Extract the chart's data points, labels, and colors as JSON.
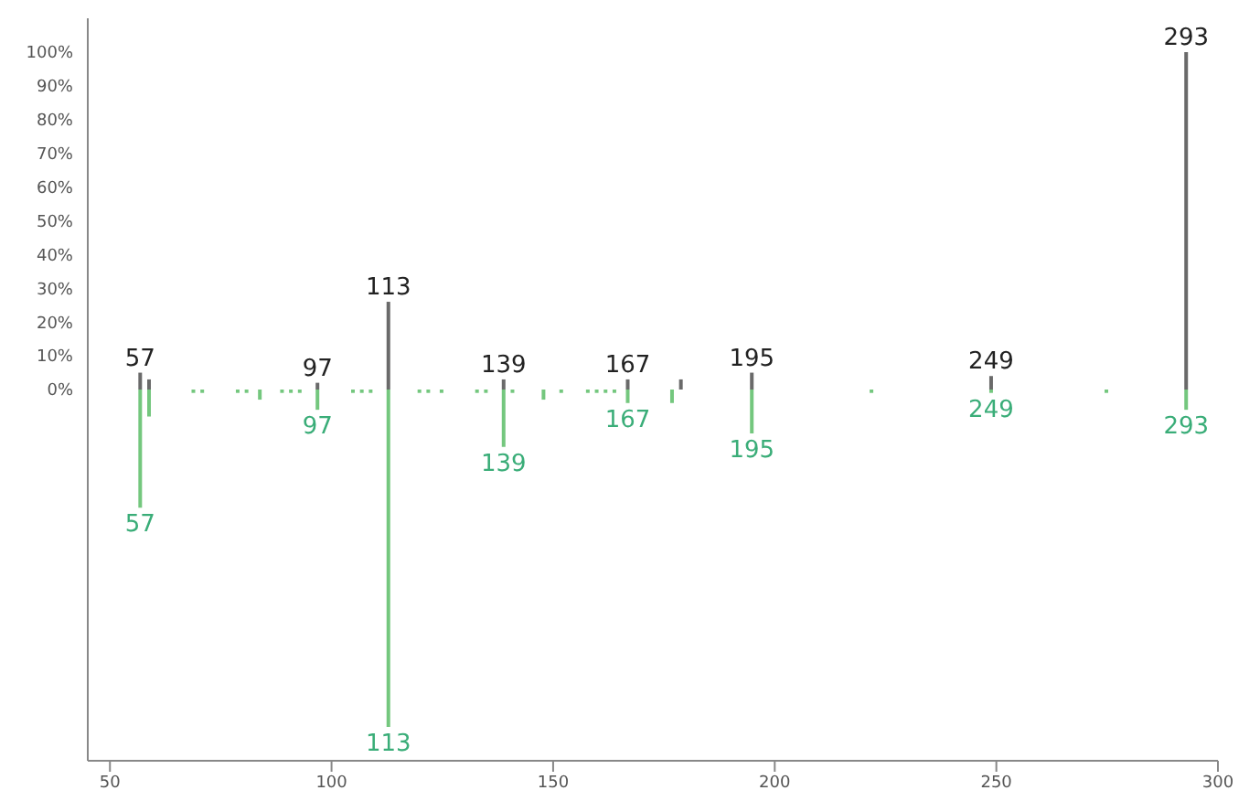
{
  "chart_data": {
    "type": "bar",
    "xlim": [
      45,
      300
    ],
    "xticks": [
      50,
      100,
      150,
      200,
      250,
      300
    ],
    "ylim": [
      -110,
      110
    ],
    "yticks": [
      {
        "value": 0,
        "label": "0%"
      },
      {
        "value": 10,
        "label": "10%"
      },
      {
        "value": 20,
        "label": "20%"
      },
      {
        "value": 30,
        "label": "30%"
      },
      {
        "value": 40,
        "label": "40%"
      },
      {
        "value": 50,
        "label": "50%"
      },
      {
        "value": 60,
        "label": "60%"
      },
      {
        "value": 70,
        "label": "70%"
      },
      {
        "value": 80,
        "label": "80%"
      },
      {
        "value": 90,
        "label": "90%"
      },
      {
        "value": 100,
        "label": "100%"
      }
    ],
    "grid": false,
    "legend": false,
    "series": [
      {
        "color": "#6a6a6a",
        "x": [
          57,
          59,
          97,
          113,
          139,
          167,
          179,
          195,
          249,
          293
        ],
        "values": [
          5,
          3,
          2,
          26,
          3,
          3,
          3,
          5,
          4,
          100
        ]
      },
      {
        "color": "#74c77e",
        "x": [
          57,
          59,
          69,
          71,
          79,
          81,
          84,
          89,
          91,
          93,
          97,
          105,
          107,
          109,
          113,
          120,
          122,
          125,
          133,
          135,
          139,
          141,
          148,
          152,
          158,
          160,
          162,
          164,
          167,
          177,
          195,
          222,
          249,
          275,
          293
        ],
        "values": [
          -35,
          -8,
          -1,
          -1,
          -1,
          -1,
          -3,
          -1,
          -1,
          -1,
          -6,
          -1,
          -1,
          -1,
          -100,
          -1,
          -1,
          -1,
          -1,
          -1,
          -17,
          -1,
          -3,
          -1,
          -1,
          -1,
          -1,
          -1,
          -4,
          -4,
          -13,
          -1,
          -1,
          -1,
          -6
        ]
      }
    ],
    "annotations": [
      {
        "text": "57",
        "x": 57,
        "y": 5
      },
      {
        "text": "97",
        "x": 97,
        "y": 2
      },
      {
        "text": "113",
        "x": 113,
        "y": 26
      },
      {
        "text": "139",
        "x": 139,
        "y": 3
      },
      {
        "text": "167",
        "x": 167,
        "y": 3
      },
      {
        "text": "195",
        "x": 195,
        "y": 5
      },
      {
        "text": "249",
        "x": 249,
        "y": 4
      },
      {
        "text": "293",
        "x": 293,
        "y": 100
      },
      {
        "text": "57",
        "x": 57,
        "y": -35
      },
      {
        "text": "97",
        "x": 97,
        "y": -6
      },
      {
        "text": "113",
        "x": 113,
        "y": -100
      },
      {
        "text": "139",
        "x": 139,
        "y": -17
      },
      {
        "text": "167",
        "x": 167,
        "y": -4
      },
      {
        "text": "195",
        "x": 195,
        "y": -13
      },
      {
        "text": "249",
        "x": 249,
        "y": -1
      },
      {
        "text": "293",
        "x": 293,
        "y": -6
      }
    ]
  }
}
